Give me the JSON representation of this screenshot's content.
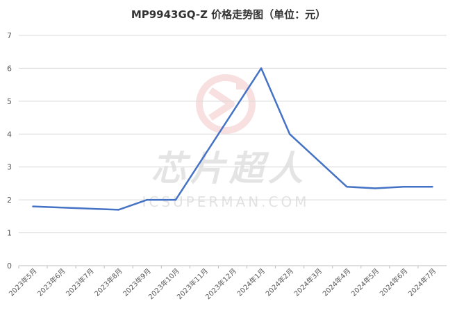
{
  "watermark": {
    "brand_cn": "芯片超人",
    "brand_url": "ICSUPERMAN.COM"
  },
  "colors": {
    "line": "#4472C4",
    "grid": "#d9d9d9",
    "watermark_logo": "#f4c7c7"
  },
  "chart_data": {
    "type": "line",
    "title": "MP9943GQ-Z 价格走势图（单位：元）",
    "xlabel": "",
    "ylabel": "",
    "categories": [
      "2023年5月",
      "2023年6月",
      "2023年7月",
      "2023年8月",
      "2023年9月",
      "2023年10月",
      "2023年11月",
      "2023年12月",
      "2024年1月",
      "2024年2月",
      "2024年3月",
      "2024年4月",
      "2024年5月",
      "2024年6月",
      "2024年7月"
    ],
    "series": [
      {
        "values": [
          1.8,
          null,
          null,
          1.7,
          2.0,
          2.0,
          null,
          null,
          6.0,
          4.0,
          null,
          2.4,
          2.35,
          2.4,
          2.4
        ]
      }
    ],
    "ylim": [
      0,
      7
    ],
    "yticks": [
      0,
      1,
      2,
      3,
      4,
      5,
      6,
      7
    ],
    "grid": true,
    "legend": "none"
  }
}
